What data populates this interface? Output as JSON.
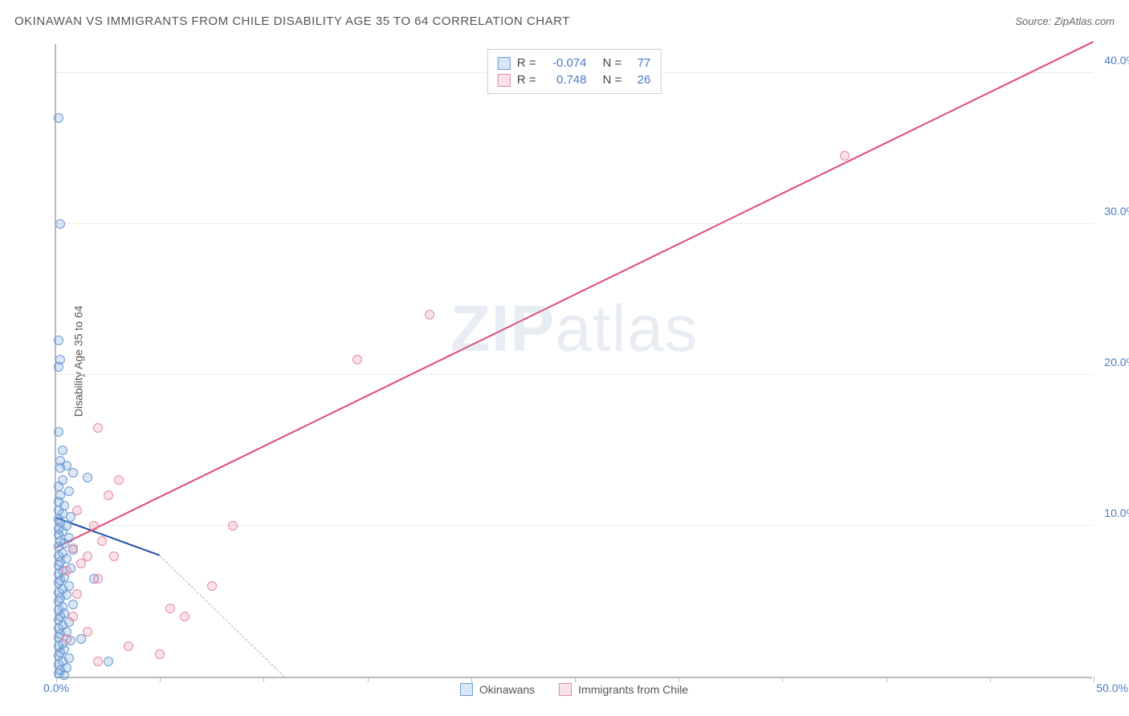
{
  "header": {
    "title": "OKINAWAN VS IMMIGRANTS FROM CHILE DISABILITY AGE 35 TO 64 CORRELATION CHART",
    "source": "Source: ZipAtlas.com"
  },
  "watermark": {
    "bold": "ZIP",
    "rest": "atlas"
  },
  "chart": {
    "type": "scatter",
    "ylabel": "Disability Age 35 to 64",
    "xlim": [
      0,
      50
    ],
    "ylim": [
      0,
      42
    ],
    "x_origin_label": "0.0%",
    "x_end_label": "50.0%",
    "yticks": [
      10,
      20,
      30,
      40
    ],
    "ytick_labels": [
      "10.0%",
      "20.0%",
      "30.0%",
      "40.0%"
    ],
    "xticks": [
      0,
      5,
      10,
      15,
      20,
      25,
      30,
      35,
      40,
      45,
      50
    ],
    "background_color": "#ffffff",
    "grid_color": "#dddddd",
    "axis_color": "#bbbbbb",
    "tick_label_color": "#4a7ac7",
    "tick_fontsize": 14,
    "label_fontsize": 14,
    "marker_radius": 6,
    "marker_stroke_width": 1.5,
    "marker_fill_opacity": 0.25,
    "series": [
      {
        "name": "Okinawans",
        "color_stroke": "#6a9ad4",
        "color_fill": "rgba(106,154,212,0.25)",
        "R": "-0.074",
        "N": "77",
        "trend": {
          "x1": 0,
          "y1": 10.5,
          "x2": 5,
          "y2": 8.0,
          "color": "#1f4fa8",
          "width": 2.5,
          "extend": {
            "x2": 11,
            "y2": 0,
            "dash": "6,5",
            "color": "#9ab6e0"
          }
        },
        "points": [
          [
            0.1,
            37.0
          ],
          [
            0.2,
            30.0
          ],
          [
            0.1,
            22.3
          ],
          [
            0.2,
            21.0
          ],
          [
            0.1,
            20.5
          ],
          [
            0.1,
            16.2
          ],
          [
            0.3,
            15.0
          ],
          [
            0.2,
            14.3
          ],
          [
            0.5,
            14.0
          ],
          [
            0.2,
            13.8
          ],
          [
            0.8,
            13.5
          ],
          [
            1.5,
            13.2
          ],
          [
            0.3,
            13.0
          ],
          [
            0.1,
            12.6
          ],
          [
            0.6,
            12.3
          ],
          [
            0.2,
            12.0
          ],
          [
            0.1,
            11.6
          ],
          [
            0.4,
            11.3
          ],
          [
            0.1,
            11.0
          ],
          [
            0.3,
            10.8
          ],
          [
            0.7,
            10.6
          ],
          [
            0.1,
            10.4
          ],
          [
            0.2,
            10.2
          ],
          [
            0.5,
            10.0
          ],
          [
            0.1,
            9.8
          ],
          [
            0.3,
            9.6
          ],
          [
            0.1,
            9.4
          ],
          [
            0.6,
            9.2
          ],
          [
            0.2,
            9.0
          ],
          [
            0.4,
            8.8
          ],
          [
            0.1,
            8.6
          ],
          [
            0.8,
            8.4
          ],
          [
            0.3,
            8.2
          ],
          [
            0.1,
            8.0
          ],
          [
            0.5,
            7.8
          ],
          [
            0.2,
            7.6
          ],
          [
            0.1,
            7.4
          ],
          [
            0.7,
            7.2
          ],
          [
            0.3,
            7.0
          ],
          [
            0.1,
            6.8
          ],
          [
            0.4,
            6.6
          ],
          [
            0.2,
            6.4
          ],
          [
            0.1,
            6.2
          ],
          [
            0.6,
            6.0
          ],
          [
            0.3,
            5.8
          ],
          [
            0.1,
            5.6
          ],
          [
            0.5,
            5.4
          ],
          [
            0.2,
            5.2
          ],
          [
            0.1,
            5.0
          ],
          [
            0.8,
            4.8
          ],
          [
            0.3,
            4.6
          ],
          [
            0.1,
            4.4
          ],
          [
            0.4,
            4.2
          ],
          [
            0.2,
            4.0
          ],
          [
            0.1,
            3.8
          ],
          [
            0.6,
            3.6
          ],
          [
            0.3,
            3.4
          ],
          [
            0.1,
            3.2
          ],
          [
            0.5,
            3.0
          ],
          [
            0.2,
            2.8
          ],
          [
            0.1,
            2.6
          ],
          [
            0.7,
            2.4
          ],
          [
            0.3,
            2.2
          ],
          [
            0.1,
            2.0
          ],
          [
            0.4,
            1.8
          ],
          [
            0.2,
            1.6
          ],
          [
            0.1,
            1.4
          ],
          [
            0.6,
            1.2
          ],
          [
            0.3,
            1.0
          ],
          [
            2.5,
            1.0
          ],
          [
            0.1,
            0.8
          ],
          [
            0.5,
            0.6
          ],
          [
            0.2,
            0.4
          ],
          [
            0.1,
            0.2
          ],
          [
            0.4,
            0.1
          ],
          [
            1.2,
            2.5
          ],
          [
            1.8,
            6.5
          ]
        ]
      },
      {
        "name": "Immigrants from Chile",
        "color_stroke": "#e68aa5",
        "color_fill": "rgba(230,138,165,0.25)",
        "R": "0.748",
        "N": "26",
        "trend": {
          "x1": 0,
          "y1": 8.5,
          "x2": 50,
          "y2": 42.0,
          "color": "#e04b7a",
          "width": 2.5
        },
        "points": [
          [
            38.0,
            34.5
          ],
          [
            18.0,
            24.0
          ],
          [
            14.5,
            21.0
          ],
          [
            2.0,
            16.5
          ],
          [
            8.5,
            10.0
          ],
          [
            3.0,
            13.0
          ],
          [
            2.5,
            12.0
          ],
          [
            1.0,
            11.0
          ],
          [
            1.8,
            10.0
          ],
          [
            2.2,
            9.0
          ],
          [
            0.8,
            8.5
          ],
          [
            1.5,
            8.0
          ],
          [
            2.8,
            8.0
          ],
          [
            1.2,
            7.5
          ],
          [
            0.5,
            7.0
          ],
          [
            2.0,
            6.5
          ],
          [
            7.5,
            6.0
          ],
          [
            1.0,
            5.5
          ],
          [
            5.5,
            4.5
          ],
          [
            6.2,
            4.0
          ],
          [
            0.8,
            4.0
          ],
          [
            1.5,
            3.0
          ],
          [
            3.5,
            2.0
          ],
          [
            5.0,
            1.5
          ],
          [
            2.0,
            1.0
          ],
          [
            0.5,
            2.5
          ]
        ]
      }
    ],
    "legend_top": {
      "border_color": "#cccccc",
      "text_color": "#444444",
      "value_color": "#4a7ac7",
      "fontsize": 15
    },
    "legend_bottom": {
      "fontsize": 14,
      "text_color": "#555555"
    }
  }
}
